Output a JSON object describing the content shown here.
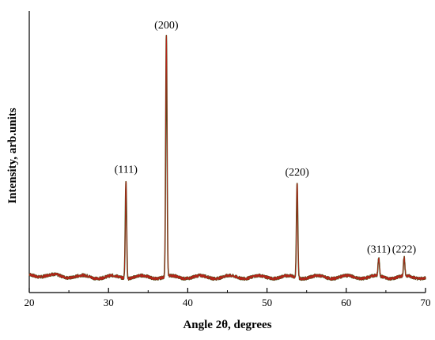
{
  "chart_data": {
    "type": "line",
    "xlabel": "Angle 2θ, degrees",
    "ylabel": "Intensity, arb.units",
    "xlim": [
      20,
      70
    ],
    "ylim": [
      0,
      1.0
    ],
    "x_ticks": [
      20,
      30,
      40,
      50,
      60,
      70
    ],
    "x_tick_labels": [
      "20",
      "30",
      "40",
      "50",
      "60",
      "70"
    ],
    "y_ticks_shown": false,
    "grid": false,
    "baseline": 0.06,
    "line_colors": [
      "#2f5a1a",
      "#cc1a1a"
    ],
    "peaks": [
      {
        "label": "(111)",
        "x": 32.2,
        "y": 0.44
      },
      {
        "label": "(200)",
        "x": 37.3,
        "y": 1.0
      },
      {
        "label": "(220)",
        "x": 53.8,
        "y": 0.43
      },
      {
        "label": "(311)",
        "x": 64.1,
        "y": 0.13
      },
      {
        "label": "(222)",
        "x": 67.3,
        "y": 0.13
      }
    ]
  }
}
